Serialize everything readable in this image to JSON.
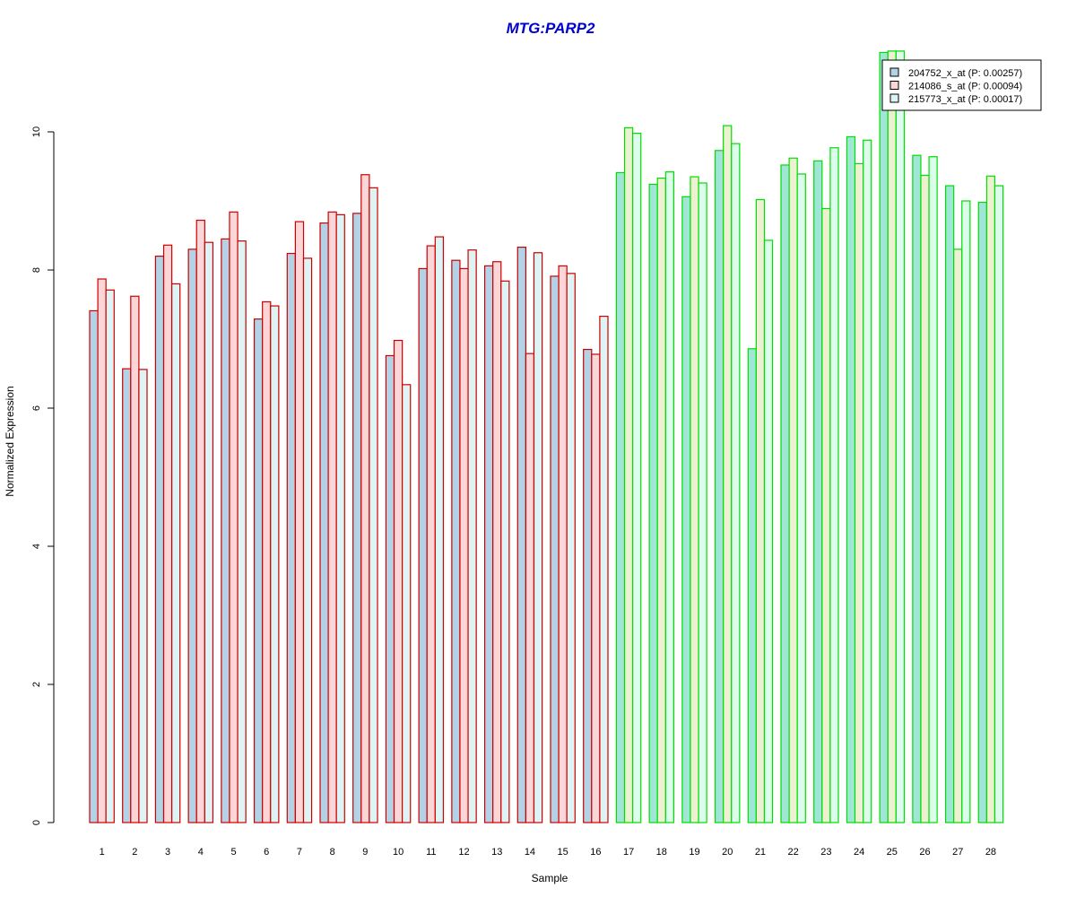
{
  "chart_data": {
    "type": "bar",
    "title": "MTG:PARP2",
    "xlabel": "Sample",
    "ylabel": "Normalized Expression",
    "ylim": [
      0,
      11.5
    ],
    "yticks": [
      0,
      2,
      4,
      6,
      8,
      10
    ],
    "grid": false,
    "legend_position": "top-right",
    "categories": [
      "1",
      "2",
      "3",
      "4",
      "5",
      "6",
      "7",
      "8",
      "9",
      "10",
      "11",
      "12",
      "13",
      "14",
      "15",
      "16",
      "17",
      "18",
      "19",
      "20",
      "21",
      "22",
      "23",
      "24",
      "25",
      "26",
      "27",
      "28"
    ],
    "group_border_colors": [
      "#cc0000",
      "#cc0000",
      "#cc0000",
      "#cc0000",
      "#cc0000",
      "#cc0000",
      "#cc0000",
      "#cc0000",
      "#cc0000",
      "#cc0000",
      "#cc0000",
      "#cc0000",
      "#cc0000",
      "#cc0000",
      "#cc0000",
      "#cc0000",
      "#00dd00",
      "#00dd00",
      "#00dd00",
      "#00dd00",
      "#00dd00",
      "#00dd00",
      "#00dd00",
      "#00dd00",
      "#00dd00",
      "#00dd00",
      "#00dd00",
      "#00dd00"
    ],
    "series": [
      {
        "name": "204752_x_at (P: 0.00257)",
        "fill_red_group": "#b4d2e6",
        "fill_green_group": "#a0e6d6",
        "values": [
          7.41,
          6.57,
          8.2,
          8.3,
          8.45,
          7.29,
          8.24,
          8.68,
          8.82,
          6.76,
          8.02,
          8.14,
          8.06,
          8.33,
          7.91,
          6.85,
          9.41,
          9.24,
          9.06,
          9.73,
          6.86,
          9.52,
          9.58,
          9.93,
          11.15,
          9.66,
          9.22,
          8.98
        ]
      },
      {
        "name": "214086_s_at (P: 0.00094)",
        "fill_red_group": "#fcd6d6",
        "fill_green_group": "#eef0d2",
        "values": [
          7.87,
          7.62,
          8.36,
          8.72,
          8.84,
          7.54,
          8.7,
          8.84,
          9.38,
          6.98,
          8.35,
          8.02,
          8.12,
          6.79,
          8.06,
          6.78,
          10.06,
          9.33,
          9.35,
          10.09,
          9.02,
          9.62,
          8.89,
          9.54,
          11.17,
          9.37,
          8.3,
          9.36
        ]
      },
      {
        "name": "215773_x_at (P: 0.00017)",
        "fill_red_group": "#def4f4",
        "fill_green_group": "#dcfcec",
        "values": [
          7.71,
          6.56,
          7.8,
          8.4,
          8.42,
          7.48,
          8.17,
          8.8,
          9.19,
          6.34,
          8.48,
          8.29,
          7.84,
          8.25,
          7.95,
          7.33,
          9.98,
          9.42,
          9.26,
          9.83,
          8.43,
          9.39,
          9.77,
          9.88,
          11.17,
          9.64,
          9.0,
          9.22
        ]
      }
    ],
    "legend_swatch_colors": [
      "#b4d2e6",
      "#fcd6d6",
      "#def4f4"
    ]
  }
}
